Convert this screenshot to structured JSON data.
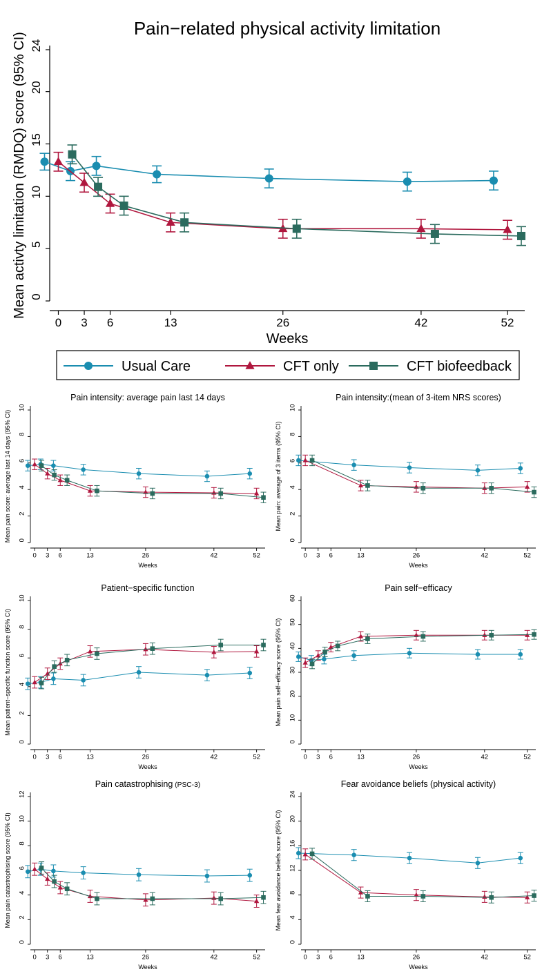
{
  "legend": {
    "items": [
      {
        "label": "Usual Care",
        "color": "#1a8db0",
        "marker": "circle"
      },
      {
        "label": "CFT only",
        "color": "#b0173e",
        "marker": "triangle"
      },
      {
        "label": "CFT biofeedback",
        "color": "#2b6b5e",
        "marker": "square"
      }
    ]
  },
  "chart_data": [
    {
      "type": "line",
      "title": "Pain−related physical activity limitation",
      "xlabel": "Weeks",
      "ylabel": "Mean activty limitation (RMDQ) score (95% CI)",
      "x_ticks": [
        0,
        3,
        6,
        13,
        26,
        42,
        52
      ],
      "y_ticks": [
        0,
        5,
        10,
        15,
        20,
        24
      ],
      "ylim": [
        0,
        24
      ],
      "series": [
        {
          "name": "Usual Care",
          "x": [
            0,
            3,
            6,
            13,
            26,
            42,
            52
          ],
          "values": [
            13.3,
            12.4,
            12.9,
            12.1,
            11.7,
            11.4,
            11.5
          ],
          "ci_low": [
            12.5,
            11.5,
            12.0,
            11.3,
            10.8,
            10.5,
            10.6
          ],
          "ci_high": [
            14.1,
            13.3,
            13.8,
            12.9,
            12.6,
            12.3,
            12.4
          ]
        },
        {
          "name": "CFT only",
          "x": [
            0,
            3,
            6,
            13,
            26,
            42,
            52
          ],
          "values": [
            13.3,
            11.3,
            9.3,
            7.5,
            6.9,
            6.9,
            6.8
          ],
          "ci_low": [
            12.4,
            10.4,
            8.4,
            6.6,
            6.0,
            6.0,
            5.9
          ],
          "ci_high": [
            14.2,
            12.2,
            10.2,
            8.4,
            7.8,
            7.8,
            7.7
          ]
        },
        {
          "name": "CFT biofeedback",
          "x": [
            0,
            3,
            6,
            13,
            26,
            42,
            52
          ],
          "values": [
            14.0,
            10.9,
            9.1,
            7.5,
            6.9,
            6.4,
            6.2
          ],
          "ci_low": [
            13.1,
            10.0,
            8.2,
            6.6,
            6.0,
            5.5,
            5.3
          ],
          "ci_high": [
            14.9,
            11.8,
            10.0,
            8.4,
            7.8,
            7.3,
            7.1
          ]
        }
      ]
    },
    {
      "type": "line",
      "title": "Pain intensity: average pain last 14 days",
      "xlabel": "Weeks",
      "ylabel": "Mean pain score: average last 14 days (95% CI)",
      "x_ticks": [
        0,
        3,
        6,
        13,
        26,
        42,
        52
      ],
      "y_ticks": [
        0,
        2,
        4,
        6,
        8,
        10
      ],
      "ylim": [
        0,
        10
      ],
      "series": [
        {
          "name": "Usual Care",
          "x": [
            0,
            3,
            6,
            13,
            26,
            42,
            52
          ],
          "values": [
            5.8,
            5.9,
            5.8,
            5.5,
            5.2,
            5.0,
            5.2
          ],
          "ci_low": [
            5.4,
            5.5,
            5.4,
            5.1,
            4.8,
            4.6,
            4.8
          ],
          "ci_high": [
            6.2,
            6.3,
            6.2,
            5.9,
            5.6,
            5.4,
            5.6
          ]
        },
        {
          "name": "CFT only",
          "x": [
            0,
            3,
            6,
            13,
            26,
            42,
            52
          ],
          "values": [
            5.9,
            5.2,
            4.7,
            3.9,
            3.8,
            3.75,
            3.7
          ],
          "ci_low": [
            5.5,
            4.8,
            4.3,
            3.5,
            3.4,
            3.35,
            3.3
          ],
          "ci_high": [
            6.3,
            5.6,
            5.1,
            4.3,
            4.2,
            4.15,
            4.1
          ]
        },
        {
          "name": "CFT biofeedback",
          "x": [
            0,
            3,
            6,
            13,
            26,
            42,
            52
          ],
          "values": [
            5.8,
            5.1,
            4.7,
            3.9,
            3.7,
            3.7,
            3.4
          ],
          "ci_low": [
            5.4,
            4.7,
            4.3,
            3.5,
            3.3,
            3.3,
            3.0
          ],
          "ci_high": [
            6.2,
            5.5,
            5.1,
            4.3,
            4.1,
            4.1,
            3.8
          ]
        }
      ]
    },
    {
      "type": "line",
      "title": "Pain intensity:(mean of 3-item NRS scores)",
      "xlabel": "Weeks",
      "ylabel": "Mean pain: average of 3 items (95% CI)",
      "x_ticks": [
        0,
        3,
        6,
        13,
        26,
        42,
        52
      ],
      "y_ticks": [
        0,
        2,
        4,
        6,
        8,
        10
      ],
      "ylim": [
        0,
        10
      ],
      "series": [
        {
          "name": "Usual Care",
          "x": [
            0,
            13,
            26,
            42,
            52
          ],
          "values": [
            6.2,
            5.85,
            5.65,
            5.45,
            5.6
          ],
          "ci_low": [
            5.8,
            5.45,
            5.25,
            5.05,
            5.2
          ],
          "ci_high": [
            6.6,
            6.25,
            6.05,
            5.85,
            6.0
          ]
        },
        {
          "name": "CFT only",
          "x": [
            0,
            13,
            26,
            42,
            52
          ],
          "values": [
            6.2,
            4.3,
            4.2,
            4.1,
            4.2
          ],
          "ci_low": [
            5.8,
            3.9,
            3.8,
            3.7,
            3.8
          ],
          "ci_high": [
            6.6,
            4.7,
            4.6,
            4.5,
            4.6
          ]
        },
        {
          "name": "CFT biofeedback",
          "x": [
            0,
            13,
            26,
            42,
            52
          ],
          "values": [
            6.2,
            4.3,
            4.1,
            4.1,
            3.8
          ],
          "ci_low": [
            5.8,
            3.9,
            3.7,
            3.7,
            3.4
          ],
          "ci_high": [
            6.6,
            4.7,
            4.5,
            4.5,
            4.2
          ]
        }
      ]
    },
    {
      "type": "line",
      "title": "Patient−specific function",
      "xlabel": "Weeks",
      "ylabel": "Mean patient−specific function score (95% CI)",
      "x_ticks": [
        0,
        3,
        6,
        13,
        26,
        42,
        52
      ],
      "y_ticks": [
        0,
        2,
        4,
        6,
        8,
        10
      ],
      "ylim": [
        0,
        10
      ],
      "series": [
        {
          "name": "Usual Care",
          "x": [
            0,
            3,
            6,
            13,
            26,
            42,
            52
          ],
          "values": [
            4.2,
            4.3,
            4.55,
            4.45,
            5.0,
            4.8,
            4.95
          ],
          "ci_low": [
            3.8,
            3.9,
            4.15,
            4.05,
            4.6,
            4.4,
            4.55
          ],
          "ci_high": [
            4.6,
            4.7,
            4.95,
            4.85,
            5.4,
            5.2,
            5.35
          ]
        },
        {
          "name": "CFT only",
          "x": [
            0,
            3,
            6,
            13,
            26,
            42,
            52
          ],
          "values": [
            4.3,
            4.9,
            5.6,
            6.45,
            6.6,
            6.4,
            6.45
          ],
          "ci_low": [
            3.9,
            4.5,
            5.2,
            6.05,
            6.2,
            6.0,
            6.05
          ],
          "ci_high": [
            4.7,
            5.3,
            6.0,
            6.85,
            7.0,
            6.8,
            6.85
          ]
        },
        {
          "name": "CFT biofeedback",
          "x": [
            0,
            3,
            6,
            13,
            26,
            42,
            52
          ],
          "values": [
            4.25,
            5.4,
            5.85,
            6.3,
            6.65,
            6.9,
            6.9
          ],
          "ci_low": [
            3.85,
            5.0,
            5.45,
            5.9,
            6.25,
            6.5,
            6.5
          ],
          "ci_high": [
            4.65,
            5.8,
            6.25,
            6.7,
            7.05,
            7.3,
            7.3
          ]
        }
      ]
    },
    {
      "type": "line",
      "title": "Pain self−efficacy",
      "xlabel": "Weeks",
      "ylabel": "Mean pain self−efficacy score (95% CI)",
      "x_ticks": [
        0,
        3,
        6,
        13,
        26,
        42,
        52
      ],
      "y_ticks": [
        0,
        10,
        20,
        30,
        40,
        50,
        60
      ],
      "ylim": [
        0,
        60
      ],
      "series": [
        {
          "name": "Usual Care",
          "x": [
            0,
            3,
            6,
            13,
            26,
            42,
            52
          ],
          "values": [
            36.5,
            35.0,
            35.5,
            37.0,
            38.0,
            37.5,
            37.5
          ],
          "ci_low": [
            34.5,
            33.0,
            33.5,
            35.0,
            36.0,
            35.5,
            35.5
          ],
          "ci_high": [
            38.5,
            37.0,
            37.5,
            39.0,
            40.0,
            39.5,
            39.5
          ]
        },
        {
          "name": "CFT only",
          "x": [
            0,
            3,
            6,
            13,
            26,
            42,
            52
          ],
          "values": [
            34.0,
            37.0,
            40.5,
            45.0,
            45.5,
            45.5,
            45.5
          ],
          "ci_low": [
            32.0,
            35.0,
            38.5,
            43.0,
            43.5,
            43.5,
            43.5
          ],
          "ci_high": [
            36.0,
            39.0,
            42.5,
            47.0,
            47.5,
            47.5,
            47.5
          ]
        },
        {
          "name": "CFT biofeedback",
          "x": [
            0,
            3,
            6,
            13,
            26,
            42,
            52
          ],
          "values": [
            33.5,
            38.5,
            41.0,
            44.0,
            45.0,
            45.5,
            45.8
          ],
          "ci_low": [
            31.5,
            36.5,
            39.0,
            42.0,
            43.0,
            43.5,
            43.8
          ],
          "ci_high": [
            35.5,
            40.5,
            43.0,
            46.0,
            47.0,
            47.5,
            47.8
          ]
        }
      ]
    },
    {
      "type": "line",
      "title": "Pain catastrophising",
      "title_suffix": "(PSC-3)",
      "xlabel": "Weeks",
      "ylabel": "Mean pain catastrophising score (95% CI)",
      "x_ticks": [
        0,
        3,
        6,
        13,
        26,
        42,
        52
      ],
      "y_ticks": [
        0,
        2,
        4,
        6,
        8,
        10,
        12
      ],
      "ylim": [
        0,
        12
      ],
      "series": [
        {
          "name": "Usual Care",
          "x": [
            0,
            3,
            6,
            13,
            26,
            42,
            52
          ],
          "values": [
            5.9,
            6.1,
            5.95,
            5.8,
            5.65,
            5.55,
            5.6
          ],
          "ci_low": [
            5.4,
            5.6,
            5.45,
            5.3,
            5.15,
            5.05,
            5.1
          ],
          "ci_high": [
            6.4,
            6.6,
            6.45,
            6.3,
            6.15,
            6.05,
            6.1
          ]
        },
        {
          "name": "CFT only",
          "x": [
            0,
            3,
            6,
            13,
            26,
            42,
            52
          ],
          "values": [
            6.1,
            5.3,
            4.6,
            3.9,
            3.6,
            3.75,
            3.5
          ],
          "ci_low": [
            5.6,
            4.8,
            4.1,
            3.4,
            3.1,
            3.25,
            3.0
          ],
          "ci_high": [
            6.6,
            5.8,
            5.1,
            4.4,
            4.1,
            4.25,
            4.0
          ]
        },
        {
          "name": "CFT biofeedback",
          "x": [
            0,
            3,
            6,
            13,
            26,
            42,
            52
          ],
          "values": [
            6.2,
            5.1,
            4.5,
            3.7,
            3.7,
            3.7,
            3.8
          ],
          "ci_low": [
            5.7,
            4.6,
            4.0,
            3.2,
            3.2,
            3.2,
            3.3
          ],
          "ci_high": [
            6.7,
            5.6,
            5.0,
            4.2,
            4.2,
            4.2,
            4.3
          ]
        }
      ]
    },
    {
      "type": "line",
      "title": "Fear avoidance beliefs (physical activity)",
      "xlabel": "Weeks",
      "ylabel": "Mean fear avoidance beliefs score (95% CI)",
      "x_ticks": [
        0,
        3,
        6,
        13,
        26,
        42,
        52
      ],
      "y_ticks": [
        0,
        4,
        8,
        12,
        16,
        20,
        24
      ],
      "ylim": [
        0,
        24
      ],
      "series": [
        {
          "name": "Usual Care",
          "x": [
            0,
            13,
            26,
            42,
            52
          ],
          "values": [
            14.8,
            14.5,
            14.0,
            13.2,
            14.0
          ],
          "ci_low": [
            13.9,
            13.6,
            13.1,
            12.3,
            13.1
          ],
          "ci_high": [
            15.7,
            15.4,
            14.9,
            14.1,
            14.9
          ]
        },
        {
          "name": "CFT only",
          "x": [
            0,
            13,
            26,
            42,
            52
          ],
          "values": [
            14.6,
            8.4,
            8.0,
            7.7,
            7.6
          ],
          "ci_low": [
            13.7,
            7.5,
            7.1,
            6.8,
            6.7
          ],
          "ci_high": [
            15.5,
            9.3,
            8.9,
            8.6,
            8.5
          ]
        },
        {
          "name": "CFT biofeedback",
          "x": [
            0,
            13,
            26,
            42,
            52
          ],
          "values": [
            14.7,
            7.8,
            7.8,
            7.6,
            7.9
          ],
          "ci_low": [
            13.8,
            6.9,
            6.9,
            6.7,
            7.0
          ],
          "ci_high": [
            15.6,
            8.7,
            8.7,
            8.5,
            8.8
          ]
        }
      ]
    }
  ]
}
